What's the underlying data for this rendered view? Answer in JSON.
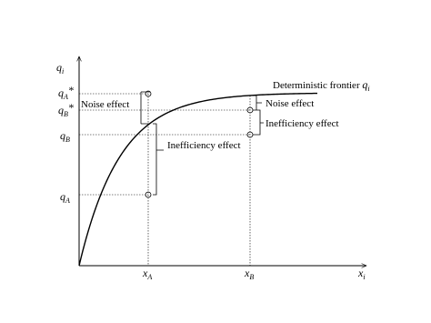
{
  "axes": {
    "y_label": {
      "main": "q",
      "sub": "i"
    },
    "x_label": {
      "main": "x",
      "sub": "i"
    }
  },
  "y_marks": [
    {
      "main": "q",
      "sub": "A",
      "sup": "*"
    },
    {
      "main": "q",
      "sub": "B",
      "sup": "*"
    },
    {
      "main": "q",
      "sub": "B"
    },
    {
      "main": "q",
      "sub": "A"
    }
  ],
  "x_marks": [
    {
      "main": "x",
      "sub": "A"
    },
    {
      "main": "x",
      "sub": "B"
    }
  ],
  "frontier": {
    "text": "Deterministic frontier ",
    "main": "q",
    "sub": "i"
  },
  "annotations": {
    "left_noise": "Noise effect",
    "left_inefficiency": "Inefficiency effect",
    "right_noise": "Noise effect",
    "right_inefficiency": "Inefficiency effect"
  }
}
